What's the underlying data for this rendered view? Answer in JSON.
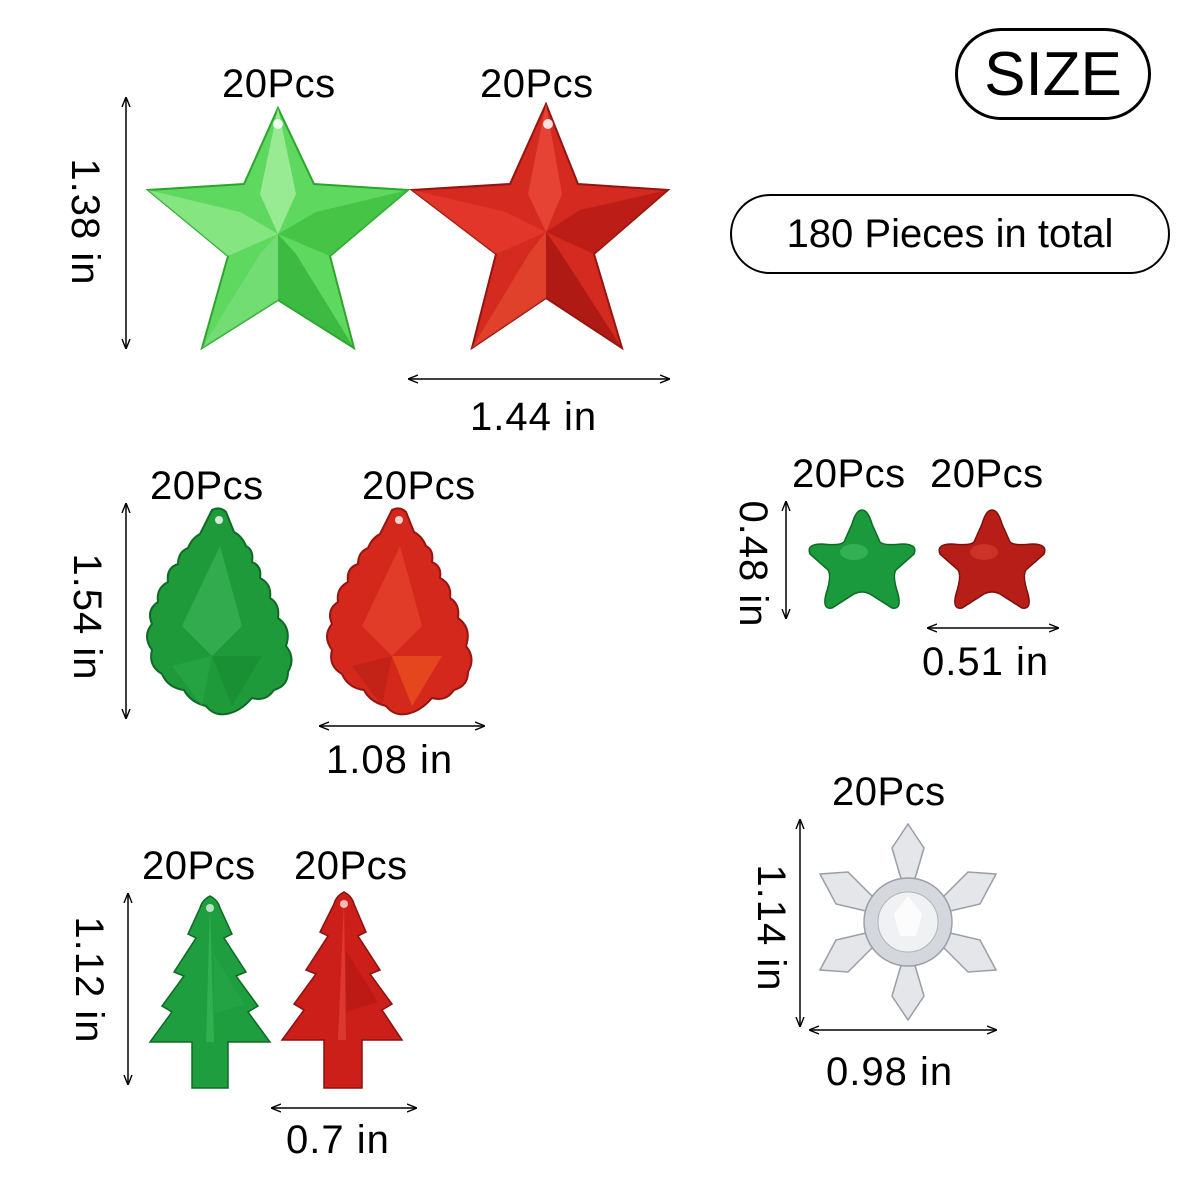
{
  "badges": {
    "size": "SIZE",
    "total": "180 Pieces in total"
  },
  "items": {
    "big_star_green": {
      "count": "20Pcs",
      "color": "#3cc93c"
    },
    "big_star_red": {
      "count": "20Pcs",
      "color": "#c9201a"
    },
    "big_star_height": "1.38 in",
    "big_star_width": "1.44 in",
    "leaf_green": {
      "count": "20Pcs",
      "color": "#1f9a3a"
    },
    "leaf_red": {
      "count": "20Pcs",
      "color": "#d4281c"
    },
    "leaf_height": "1.54 in",
    "leaf_width": "1.08 in",
    "small_star_green": {
      "count": "20Pcs",
      "color": "#1a9a3c"
    },
    "small_star_red": {
      "count": "20Pcs",
      "color": "#b81e18"
    },
    "small_star_height": "0.48 in",
    "small_star_width": "0.51 in",
    "tree_green": {
      "count": "20Pcs",
      "color": "#1e9e3e"
    },
    "tree_red": {
      "count": "20Pcs",
      "color": "#cc1f1a"
    },
    "tree_height": "1.12 in",
    "tree_width": "0.7 in",
    "snowflake": {
      "count": "20Pcs",
      "color": "#dcdee2"
    },
    "snowflake_height": "1.14 in",
    "snowflake_width": "0.98 in"
  }
}
